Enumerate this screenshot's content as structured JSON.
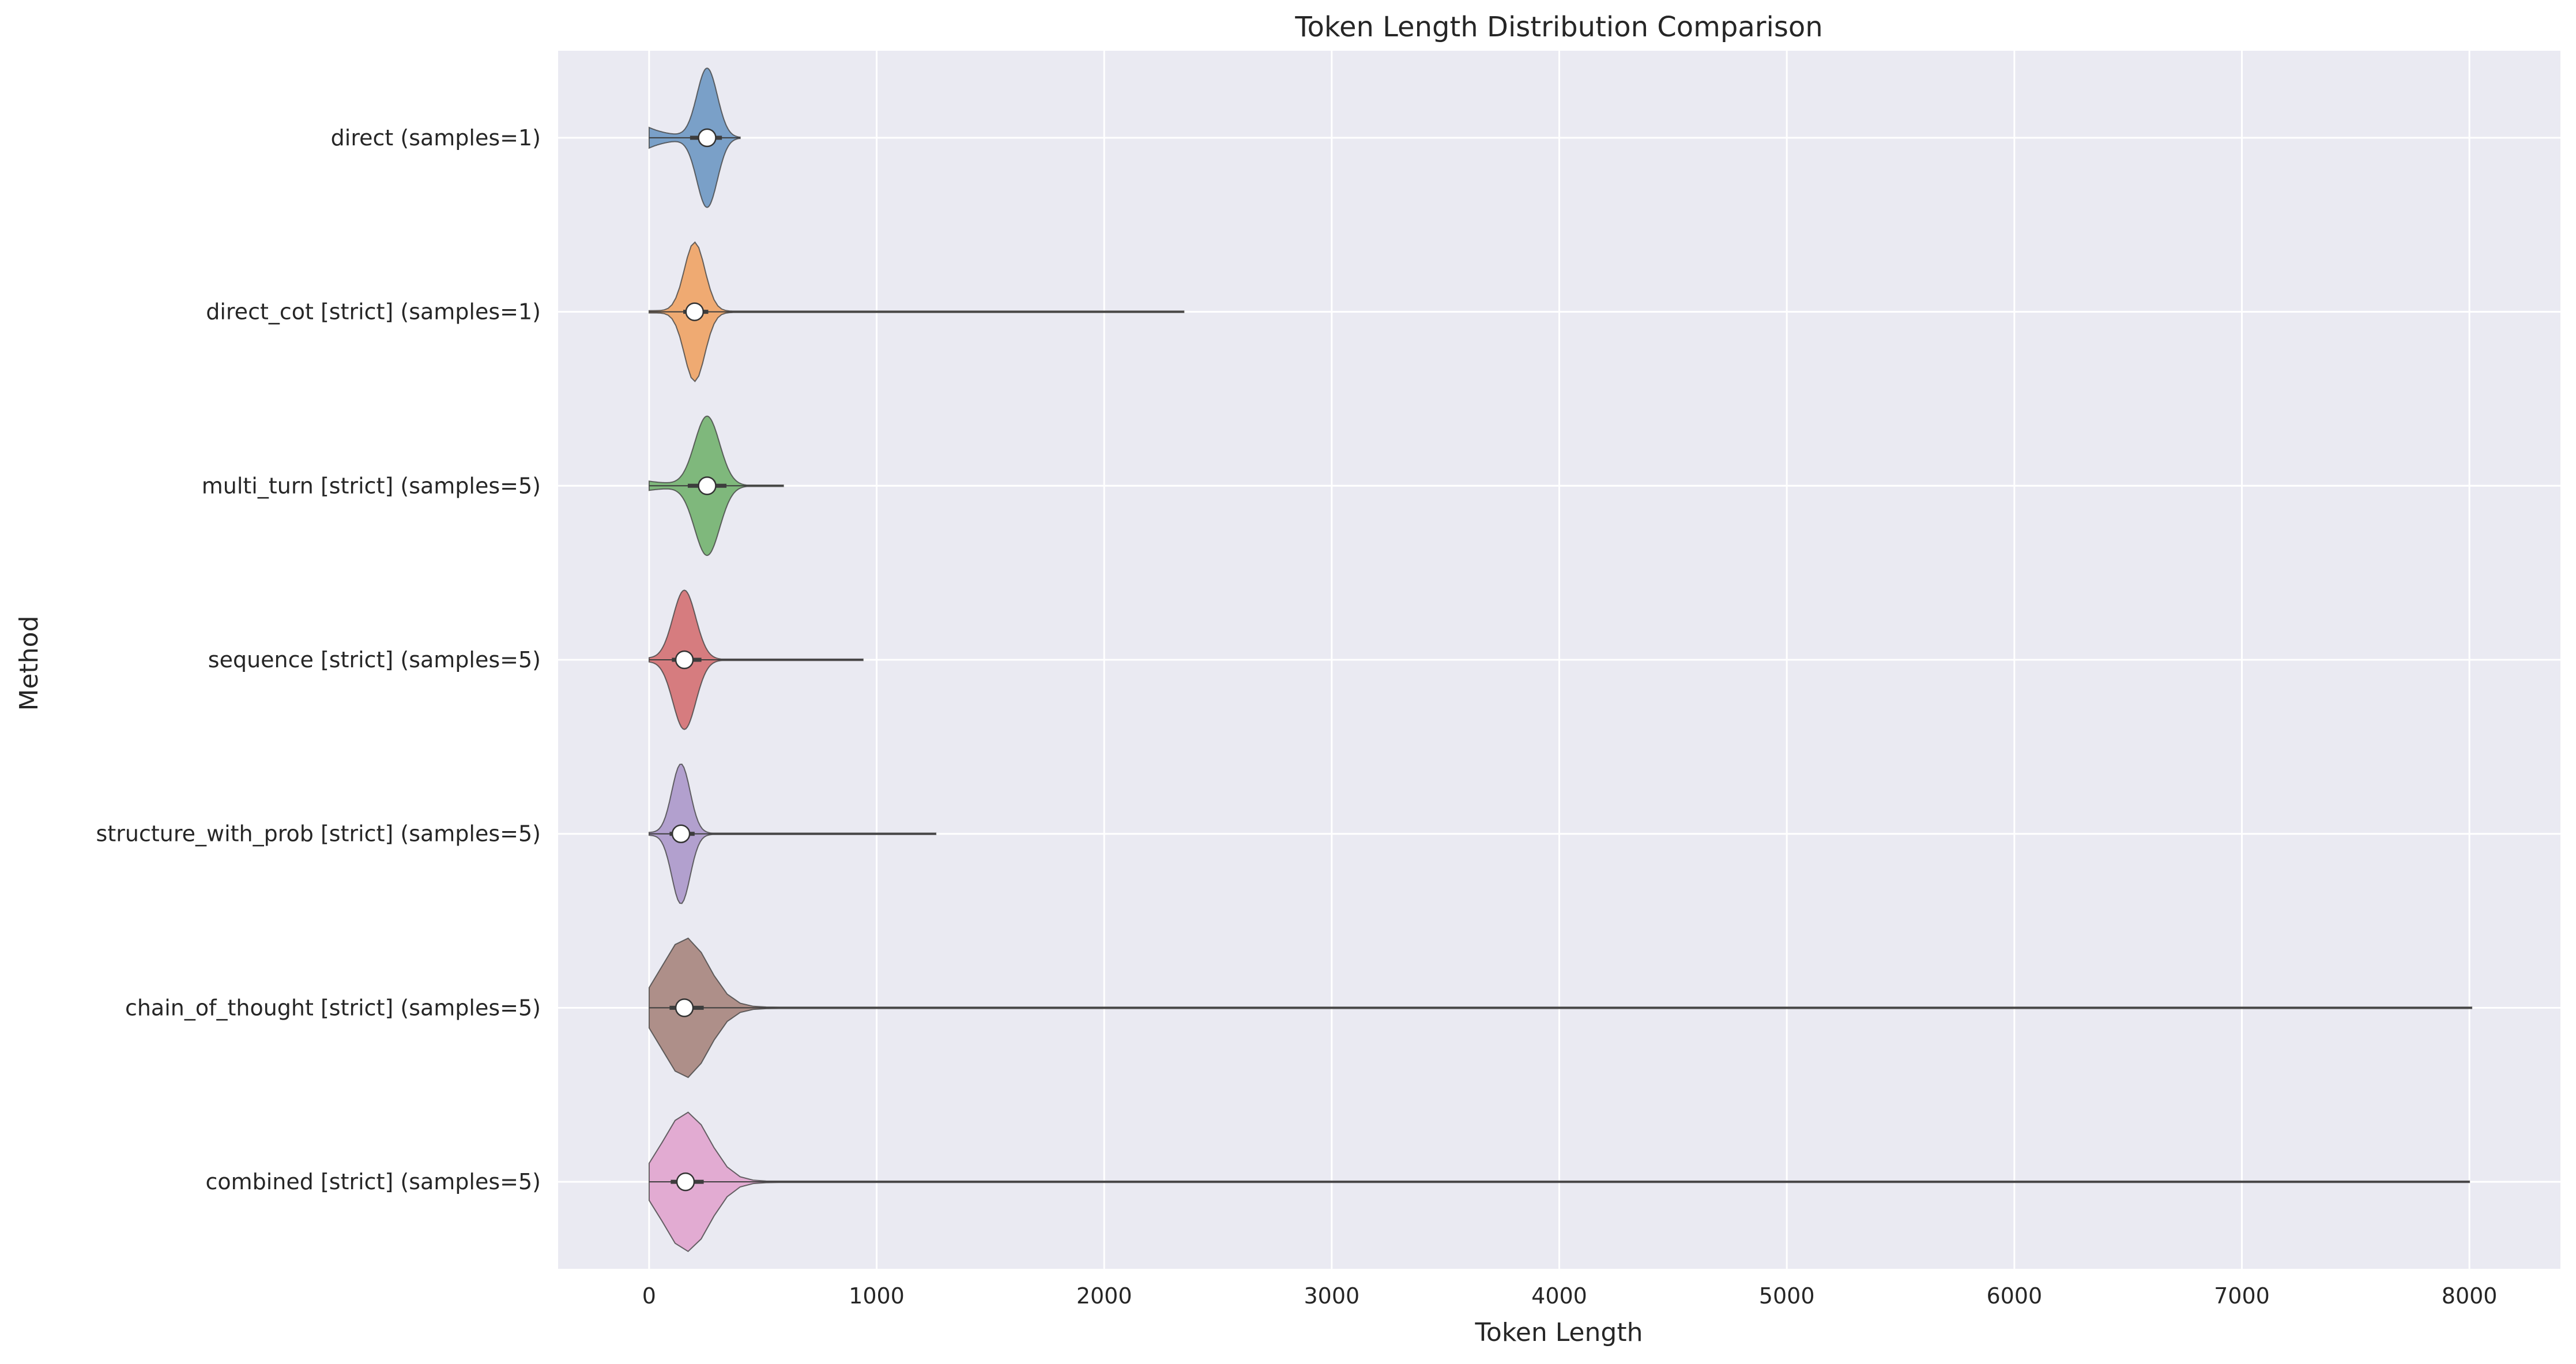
{
  "chart_data": {
    "type": "violin",
    "title": "Token Length Distribution Comparison",
    "xlabel": "Token Length",
    "ylabel": "Method",
    "xlim": [
      -400,
      8400
    ],
    "xticks": [
      0,
      1000,
      2000,
      3000,
      4000,
      5000,
      6000,
      7000,
      8000
    ],
    "grid": true,
    "series": [
      {
        "name": "direct (samples=1)",
        "color": "#7aa0c8",
        "min": 0,
        "max": 400,
        "median": 255,
        "q1": 180,
        "q3": 320,
        "peak": 255,
        "spread": 45
      },
      {
        "name": "direct_cot [strict] (samples=1)",
        "color": "#efaa72",
        "min": 0,
        "max": 2350,
        "median": 200,
        "q1": 150,
        "q3": 260,
        "peak": 200,
        "spread": 45
      },
      {
        "name": "multi_turn [strict] (samples=5)",
        "color": "#7fb87c",
        "min": 0,
        "max": 590,
        "median": 255,
        "q1": 170,
        "q3": 340,
        "peak": 255,
        "spread": 55
      },
      {
        "name": "sequence [strict] (samples=5)",
        "color": "#d67c7f",
        "min": 0,
        "max": 940,
        "median": 155,
        "q1": 100,
        "q3": 230,
        "peak": 155,
        "spread": 50
      },
      {
        "name": "structure_with_prob [strict] (samples=5)",
        "color": "#b2a0ce",
        "min": 0,
        "max": 1260,
        "median": 140,
        "q1": 90,
        "q3": 200,
        "peak": 140,
        "spread": 40
      },
      {
        "name": "chain_of_thought [strict] (samples=5)",
        "color": "#ae8f89",
        "min": 0,
        "max": 8010,
        "median": 155,
        "q1": 90,
        "q3": 240,
        "peak": 160,
        "spread": 100
      },
      {
        "name": "combined [strict] (samples=5)",
        "color": "#e2abd2",
        "min": 0,
        "max": 8000,
        "median": 160,
        "q1": 95,
        "q3": 240,
        "peak": 165,
        "spread": 100
      }
    ]
  }
}
